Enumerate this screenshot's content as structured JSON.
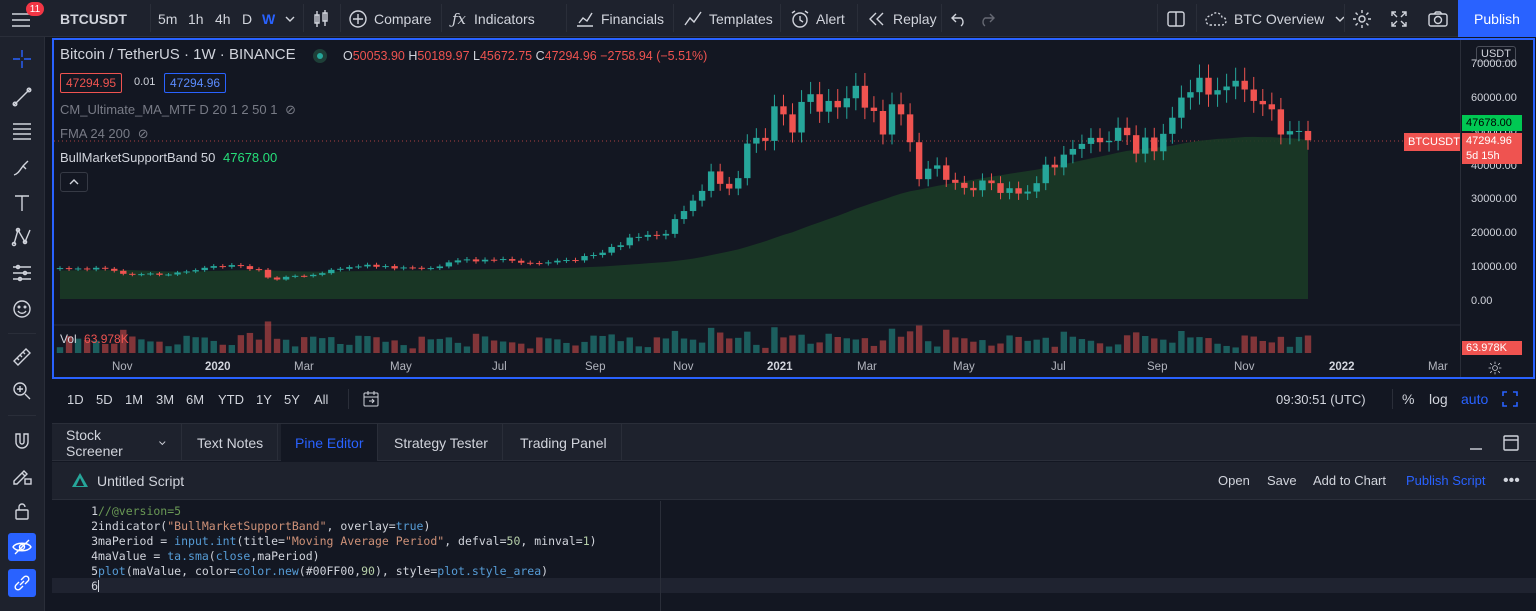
{
  "top": {
    "badge": "11",
    "symbol": "BTCUSDT",
    "intervals": [
      "5m",
      "1h",
      "4h",
      "D",
      "W"
    ],
    "compare": "Compare",
    "indicators": "Indicators",
    "financials": "Financials",
    "templates": "Templates",
    "alert": "Alert",
    "replay": "Replay",
    "overview": "BTC Overview",
    "publish": "Publish"
  },
  "chart": {
    "title": "Bitcoin / TetherUS · 1W · BINANCE",
    "ohlc": {
      "o_label": "O",
      "o": "50053.90",
      "h_label": "H",
      "h": "50189.97",
      "l_label": "L",
      "l": "45672.75",
      "c_label": "C",
      "c": "47294.96",
      "chg": "−2758.94 (−5.51%)"
    },
    "bid": "47294.95",
    "spread": "0.01",
    "ask": "47294.96",
    "indicators": [
      {
        "name": "CM_Ultimate_MA_MTF D 20 1 2 50 1"
      },
      {
        "name": "FMA 24 200"
      },
      {
        "name": "BullMarketSupportBand 50",
        "value": "47678.00"
      }
    ],
    "currency": "USDT",
    "yticks": [
      "70000.00",
      "60000.00",
      "50000.00",
      "40000.00",
      "30000.00",
      "20000.00",
      "10000.00",
      "0.00"
    ],
    "tags": {
      "band": "47678.00",
      "symbol": "BTCUSDT",
      "price": "47294.96",
      "countdown": "5d 15h",
      "vol": "63.978K"
    },
    "volume": {
      "label": "Vol",
      "value": "63.978K"
    },
    "xticks": [
      "Nov",
      "2020",
      "Mar",
      "May",
      "Jul",
      "Sep",
      "Nov",
      "2021",
      "Mar",
      "May",
      "Jul",
      "Sep",
      "Nov",
      "2022",
      "Mar"
    ],
    "colors": {
      "up": "#26a69a",
      "down": "#ef5350",
      "band": "#1b3a26",
      "accent": "#2962ff"
    }
  },
  "chart_data": {
    "type": "candlestick",
    "xlabel": "",
    "ylabel": "",
    "ylim": [
      0,
      70000
    ],
    "series": [
      {
        "name": "BullMarketSupportBand",
        "type": "area"
      }
    ],
    "values": [
      9200,
      8900,
      9100,
      8800,
      9300,
      9000,
      8400,
      7500,
      7200,
      7400,
      7600,
      7200,
      7300,
      7900,
      8200,
      8600,
      9300,
      9800,
      9600,
      10100,
      9800,
      8900,
      8700,
      6400,
      5800,
      6600,
      6900,
      6800,
      7200,
      7700,
      8700,
      9000,
      9500,
      9700,
      10200,
      9600,
      9800,
      9100,
      9400,
      9300,
      9100,
      9200,
      9700,
      10900,
      11500,
      11800,
      11200,
      11700,
      11600,
      11900,
      11400,
      10800,
      10700,
      10600,
      10900,
      11400,
      11600,
      11500,
      12800,
      13100,
      13800,
      15500,
      16000,
      18300,
      18500,
      19100,
      18900,
      19400,
      23800,
      26200,
      29300,
      32200,
      38000,
      34300,
      32900,
      36000,
      46300,
      48000,
      47100,
      57400,
      55000,
      49600,
      58700,
      61000,
      55800,
      59000,
      57100,
      59800,
      63500,
      57000,
      56000,
      49000,
      58000,
      55000,
      46700,
      35700,
      38800,
      39800,
      35500,
      34600,
      33100,
      32400,
      35300,
      34500,
      31600,
      33000,
      31400,
      32000,
      34500,
      40000,
      39200,
      43000,
      44700,
      46200,
      48000,
      46700,
      47100,
      51000,
      48800,
      43300,
      48100,
      44000,
      49200,
      54000,
      60000,
      61600,
      65900,
      60900,
      62200,
      63300,
      65000,
      62400,
      59000,
      58000,
      56500,
      49000,
      50000,
      50053,
      47294
    ]
  },
  "range": {
    "items": [
      "1D",
      "5D",
      "1M",
      "3M",
      "6M",
      "YTD",
      "1Y",
      "5Y",
      "All"
    ],
    "time": "09:30:51 (UTC)",
    "pct": "%",
    "log": "log",
    "auto": "auto"
  },
  "panel": {
    "tabs": [
      "Stock Screener",
      "Text Notes",
      "Pine Editor",
      "Strategy Tester",
      "Trading Panel"
    ],
    "script": "Untitled Script",
    "actions": [
      "Open",
      "Save",
      "Add to Chart",
      "Publish Script"
    ]
  },
  "code": {
    "line_numbers": [
      "1",
      "2",
      "3",
      "4",
      "5",
      "6"
    ]
  }
}
